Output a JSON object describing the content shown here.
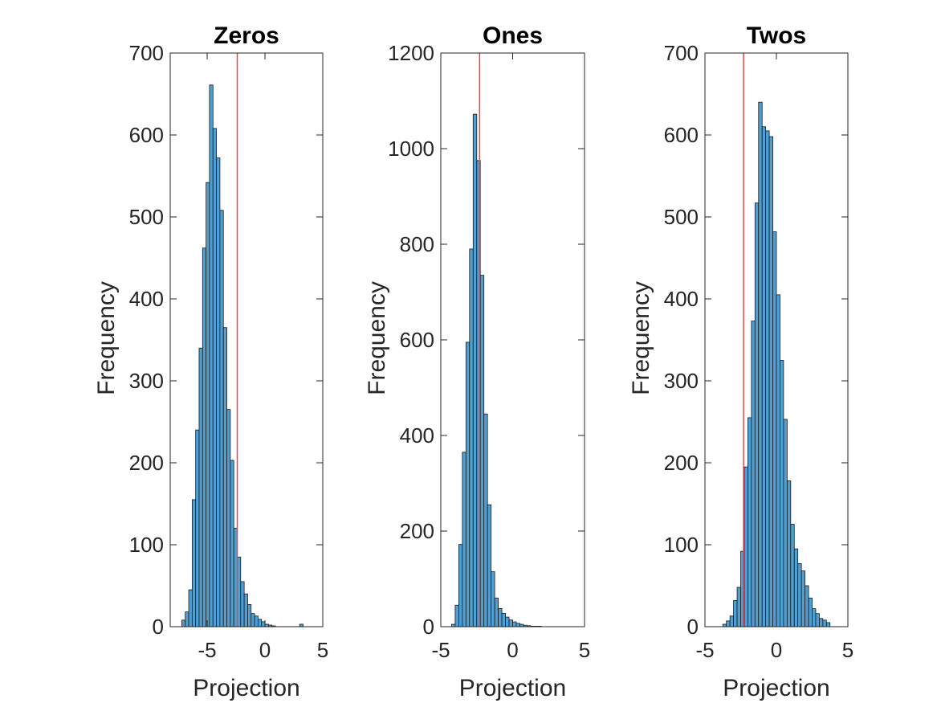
{
  "colors": {
    "bar_fill": "#4f9fd3",
    "bar_edge": "#1a1a1a",
    "threshold_line": "#e8474a",
    "axes": "#262626"
  },
  "chart_data": [
    {
      "type": "bar",
      "title": "Zeros",
      "xlabel": "Projection",
      "ylabel": "Frequency",
      "xlim": [
        -8.2,
        5
      ],
      "ylim": [
        0,
        700
      ],
      "xticks": [
        -5,
        0,
        5
      ],
      "xtick_labels": [
        "-5",
        "0",
        "5"
      ],
      "yticks": [
        0,
        100,
        200,
        300,
        400,
        500,
        600,
        700
      ],
      "ytick_labels": [
        "0",
        "100",
        "200",
        "300",
        "400",
        "500",
        "600",
        "700"
      ],
      "bin_width": 0.3,
      "bin_start": -7.2,
      "counts": [
        8,
        18,
        45,
        155,
        240,
        340,
        462,
        542,
        661,
        608,
        572,
        508,
        365,
        265,
        203,
        120,
        85,
        55,
        40,
        27,
        16,
        13,
        9,
        6,
        3,
        2,
        1,
        0,
        0,
        0,
        0,
        0,
        0,
        0,
        3
      ],
      "threshold": -2.4,
      "grid": false
    },
    {
      "type": "bar",
      "title": "Ones",
      "xlabel": "Projection",
      "ylabel": "Frequency",
      "xlim": [
        -5,
        5
      ],
      "ylim": [
        0,
        1200
      ],
      "xticks": [
        -5,
        0,
        5
      ],
      "xtick_labels": [
        "-5",
        "0",
        "5"
      ],
      "yticks": [
        0,
        200,
        400,
        600,
        800,
        1000,
        1200
      ],
      "ytick_labels": [
        "0",
        "200",
        "400",
        "600",
        "800",
        "1000",
        "1200"
      ],
      "bin_width": 0.25,
      "bin_start": -4.25,
      "counts": [
        5,
        45,
        172,
        365,
        595,
        790,
        1072,
        975,
        735,
        445,
        255,
        115,
        60,
        38,
        28,
        20,
        14,
        10,
        7,
        5,
        3,
        2,
        1,
        1,
        1
      ],
      "threshold": -2.3,
      "grid": false
    },
    {
      "type": "bar",
      "title": "Twos",
      "xlabel": "Projection",
      "ylabel": "Frequency",
      "xlim": [
        -5,
        5
      ],
      "ylim": [
        0,
        700
      ],
      "xticks": [
        -5,
        0,
        5
      ],
      "xtick_labels": [
        "-5",
        "0",
        "5"
      ],
      "yticks": [
        0,
        100,
        200,
        300,
        400,
        500,
        600,
        700
      ],
      "ytick_labels": [
        "0",
        "100",
        "200",
        "300",
        "400",
        "500",
        "600",
        "700"
      ],
      "bin_width": 0.25,
      "bin_start": -3.75,
      "counts": [
        3,
        7,
        13,
        32,
        48,
        92,
        195,
        255,
        373,
        517,
        640,
        610,
        605,
        598,
        482,
        405,
        325,
        253,
        178,
        125,
        95,
        77,
        68,
        50,
        35,
        22,
        16,
        10,
        8,
        5
      ],
      "threshold": -2.3,
      "grid": false
    }
  ]
}
